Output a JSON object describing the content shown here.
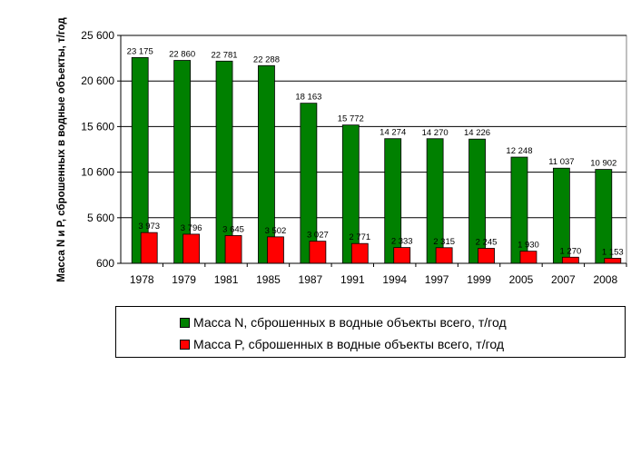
{
  "chart_data": {
    "type": "bar",
    "ylabel": "Масса N и P, сброшенных в водные объекты, т/год",
    "ylim": [
      600,
      25600
    ],
    "yticks": [
      "600",
      "5 600",
      "10 600",
      "15 600",
      "20 600",
      "25 600"
    ],
    "categories": [
      "1978",
      "1979",
      "1981",
      "1985",
      "1987",
      "1991",
      "1994",
      "1997",
      "1999",
      "2005",
      "2007",
      "2008"
    ],
    "grid": true,
    "legend_position": "bottom",
    "series": [
      {
        "name": "Масса N, сброшенных в водные объекты всего, т/год",
        "color": "#008000",
        "values": [
          23175,
          22860,
          22781,
          22288,
          18163,
          15772,
          14274,
          14270,
          14226,
          12248,
          11037,
          10902
        ],
        "labels": [
          "23 175",
          "22 860",
          "22 781",
          "22 288",
          "18 163",
          "15 772",
          "14 274",
          "14 270",
          "14 226",
          "12 248",
          "11 037",
          "10 902"
        ]
      },
      {
        "name": "Масса P, сброшенных в водные объекты всего, т/год",
        "color": "#FF0000",
        "values": [
          3973,
          3796,
          3645,
          3502,
          3027,
          2771,
          2333,
          2315,
          2245,
          1930,
          1270,
          1153
        ],
        "labels": [
          "3 973",
          "3 796",
          "3 645",
          "3 502",
          "3 027",
          "2 771",
          "2 333",
          "2 315",
          "2 245",
          "1 930",
          "1 270",
          "1 153"
        ]
      }
    ]
  }
}
